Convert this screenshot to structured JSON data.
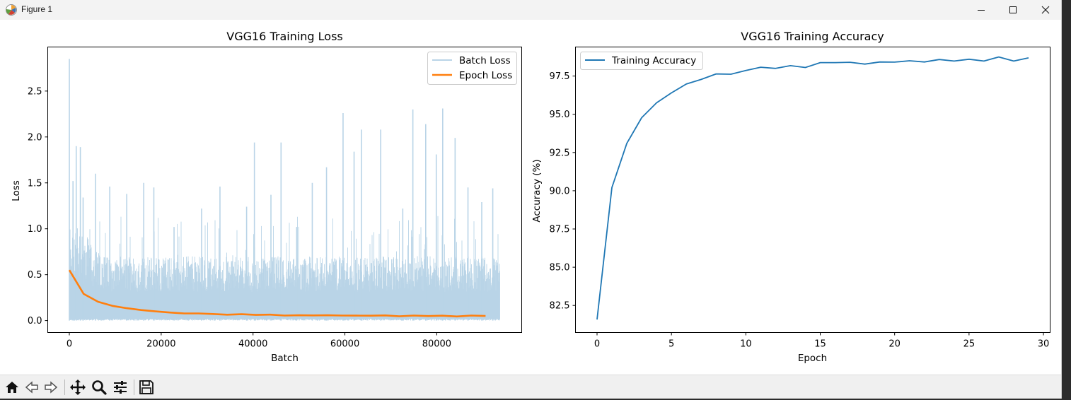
{
  "window": {
    "title": "Figure 1"
  },
  "colors": {
    "batch_loss": "#b9d4e7",
    "epoch_loss": "#ff7f0e",
    "accuracy": "#1f77b4"
  },
  "toolbar": {
    "buttons": [
      {
        "name": "home-button",
        "icon": "home-icon"
      },
      {
        "name": "back-button",
        "icon": "arrow-left-icon"
      },
      {
        "name": "forward-button",
        "icon": "arrow-right-icon"
      },
      {
        "name": "pan-button",
        "icon": "move-icon"
      },
      {
        "name": "zoom-button",
        "icon": "magnifier-icon"
      },
      {
        "name": "configure-subplots-button",
        "icon": "sliders-icon"
      },
      {
        "name": "save-button",
        "icon": "floppy-disk-icon"
      }
    ]
  },
  "chart_data": [
    {
      "type": "line",
      "title": "VGG16 Training Loss",
      "xlabel": "Batch",
      "ylabel": "Loss",
      "xlim": [
        -4700,
        98500
      ],
      "ylim": [
        -0.13,
        2.98
      ],
      "x_ticks": [
        0,
        20000,
        40000,
        60000,
        80000
      ],
      "x_tick_labels": [
        "0",
        "20000",
        "40000",
        "60000",
        "80000"
      ],
      "y_ticks": [
        0.0,
        0.5,
        1.0,
        1.5,
        2.0,
        2.5
      ],
      "y_tick_labels": [
        "0.0",
        "0.5",
        "1.0",
        "1.5",
        "2.0",
        "2.5"
      ],
      "legend_position": "top-right",
      "grid": false,
      "series": [
        {
          "name": "Batch Loss",
          "style": "dense noisy band",
          "x_range": [
            0,
            93750
          ],
          "max": 2.85,
          "typical_upper": 0.7,
          "min": 0.0,
          "spikes": [
            {
              "x": 0,
              "y": 2.85
            },
            {
              "x": 800,
              "y": 1.52
            },
            {
              "x": 1500,
              "y": 1.9
            },
            {
              "x": 2400,
              "y": 1.89
            },
            {
              "x": 3000,
              "y": 1.34
            },
            {
              "x": 5700,
              "y": 1.6
            },
            {
              "x": 8800,
              "y": 1.46
            },
            {
              "x": 12500,
              "y": 1.38
            },
            {
              "x": 16200,
              "y": 1.5
            },
            {
              "x": 18400,
              "y": 1.45
            },
            {
              "x": 22800,
              "y": 1.02
            },
            {
              "x": 28800,
              "y": 1.22
            },
            {
              "x": 32800,
              "y": 1.46
            },
            {
              "x": 38600,
              "y": 1.24
            },
            {
              "x": 40300,
              "y": 1.94
            },
            {
              "x": 43900,
              "y": 1.37
            },
            {
              "x": 46100,
              "y": 1.94
            },
            {
              "x": 49500,
              "y": 1.02
            },
            {
              "x": 52900,
              "y": 1.5
            },
            {
              "x": 56000,
              "y": 1.67
            },
            {
              "x": 59600,
              "y": 2.26
            },
            {
              "x": 62000,
              "y": 1.84
            },
            {
              "x": 63600,
              "y": 2.08
            },
            {
              "x": 67800,
              "y": 2.08
            },
            {
              "x": 72600,
              "y": 1.22
            },
            {
              "x": 74800,
              "y": 2.3
            },
            {
              "x": 77600,
              "y": 2.14
            },
            {
              "x": 79900,
              "y": 1.81
            },
            {
              "x": 81300,
              "y": 2.31
            },
            {
              "x": 84000,
              "y": 1.99
            },
            {
              "x": 86800,
              "y": 1.45
            },
            {
              "x": 89800,
              "y": 1.29
            },
            {
              "x": 92200,
              "y": 1.44
            }
          ]
        },
        {
          "name": "Epoch Loss",
          "x": [
            0,
            3125,
            6250,
            9375,
            12500,
            15625,
            18750,
            21875,
            25000,
            28125,
            31250,
            34375,
            37500,
            40625,
            43750,
            46875,
            50000,
            53125,
            56250,
            59375,
            62500,
            65625,
            68750,
            71875,
            75000,
            78125,
            81250,
            84375,
            87500,
            90625
          ],
          "y": [
            0.55,
            0.29,
            0.205,
            0.16,
            0.135,
            0.115,
            0.1,
            0.088,
            0.078,
            0.078,
            0.072,
            0.064,
            0.069,
            0.062,
            0.065,
            0.055,
            0.058,
            0.056,
            0.058,
            0.055,
            0.054,
            0.053,
            0.056,
            0.047,
            0.055,
            0.049,
            0.053,
            0.045,
            0.055,
            0.05
          ]
        }
      ]
    },
    {
      "type": "line",
      "title": "VGG16 Training Accuracy",
      "xlabel": "Epoch",
      "ylabel": "Accuracy (%)",
      "xlim": [
        -1.45,
        30.45
      ],
      "ylim": [
        80.73,
        99.4
      ],
      "x_ticks": [
        0,
        5,
        10,
        15,
        20,
        25,
        30
      ],
      "x_tick_labels": [
        "0",
        "5",
        "10",
        "15",
        "20",
        "25",
        "30"
      ],
      "y_ticks": [
        82.5,
        85.0,
        87.5,
        90.0,
        92.5,
        95.0,
        97.5
      ],
      "y_tick_labels": [
        "82.5",
        "85.0",
        "87.5",
        "90.0",
        "92.5",
        "95.0",
        "97.5"
      ],
      "legend_position": "top-left",
      "grid": false,
      "series": [
        {
          "name": "Training Accuracy",
          "x": [
            0,
            1,
            2,
            3,
            4,
            5,
            6,
            7,
            8,
            9,
            10,
            11,
            12,
            13,
            14,
            15,
            16,
            17,
            18,
            19,
            20,
            21,
            22,
            23,
            24,
            25,
            26,
            27,
            28,
            29
          ],
          "y": [
            81.58,
            90.21,
            93.1,
            94.78,
            95.75,
            96.4,
            96.98,
            97.28,
            97.64,
            97.62,
            97.86,
            98.08,
            98.0,
            98.18,
            98.06,
            98.38,
            98.38,
            98.4,
            98.28,
            98.42,
            98.41,
            98.5,
            98.42,
            98.58,
            98.48,
            98.6,
            98.48,
            98.75,
            98.48,
            98.69
          ]
        }
      ]
    }
  ]
}
